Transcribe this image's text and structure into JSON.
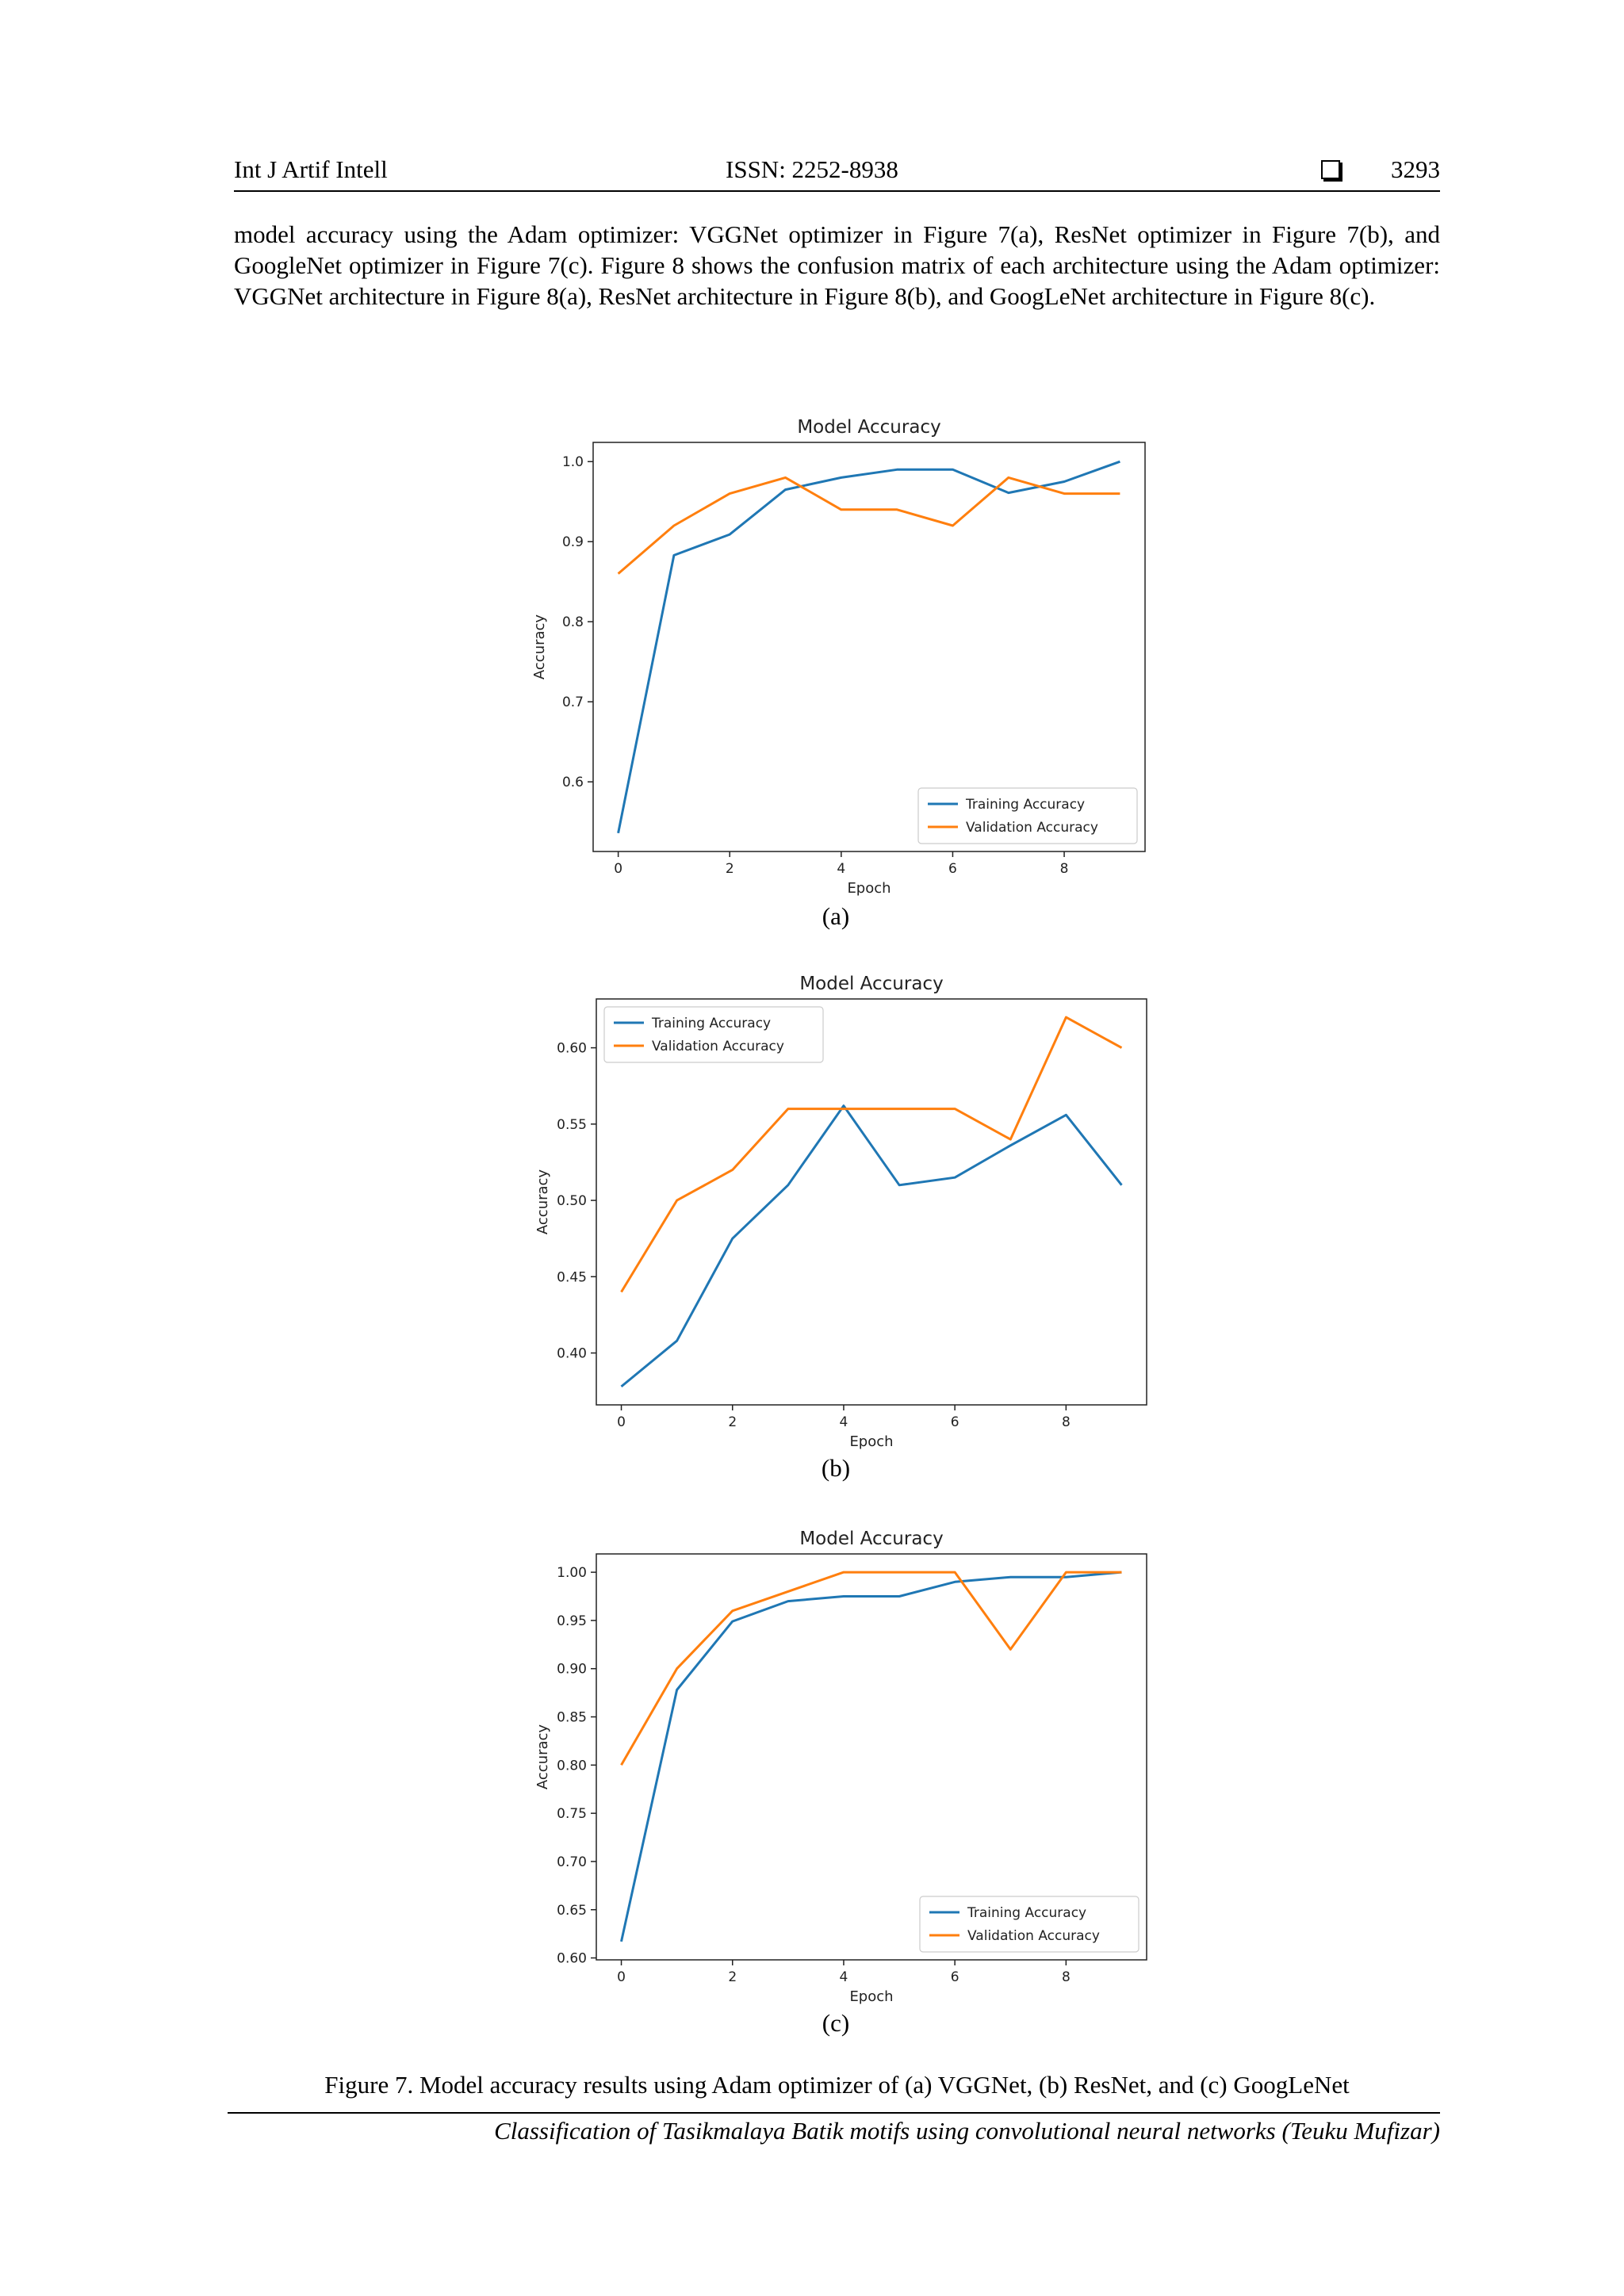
{
  "header": {
    "journal": "Int J Artif Intell",
    "issn": "ISSN: 2252-8938",
    "page_number": "3293"
  },
  "intro_text": "model accuracy using the Adam optimizer: VGGNet optimizer in Figure 7(a), ResNet optimizer in Figure 7(b), and GoogleNet optimizer in Figure 7(c). Figure 8 shows the confusion matrix of each architecture using the Adam optimizer: VGGNet architecture in Figure 8(a), ResNet architecture in Figure 8(b), and GoogLeNet architecture in Figure 8(c).",
  "subfigure_labels": [
    "(a)",
    "(b)",
    "(c)"
  ],
  "caption": "Figure 7. Model accuracy results using Adam optimizer of (a) VGGNet, (b) ResNet, and (c) GoogLeNet",
  "footer": "Classification of Tasikmalaya Batik motifs using convolutional neural networks (Teuku Mufizar)",
  "colors": {
    "training": "#1f77b4",
    "validation": "#ff7f0e"
  },
  "chart_data": [
    {
      "type": "line",
      "title": "Model Accuracy",
      "xlabel": "Epoch",
      "ylabel": "Accuracy",
      "x": [
        0,
        1,
        2,
        3,
        4,
        5,
        6,
        7,
        8,
        9
      ],
      "xticks": [
        0,
        2,
        4,
        6,
        8
      ],
      "xticklabels": [
        "0",
        "2",
        "4",
        "6",
        "8"
      ],
      "xlim": [
        -0.45,
        9.45
      ],
      "ylim": [
        0.513,
        1.024
      ],
      "yticks": [
        0.6,
        0.7,
        0.8,
        0.9,
        1.0
      ],
      "yticklabels": [
        "0.6",
        "0.7",
        "0.8",
        "0.9",
        "1.0"
      ],
      "legend": "lower-right",
      "grid": false,
      "series": [
        {
          "name": "Training Accuracy",
          "values": [
            0.536,
            0.883,
            0.909,
            0.965,
            0.98,
            0.99,
            0.99,
            0.961,
            0.975,
            1.0
          ]
        },
        {
          "name": "Validation Accuracy",
          "values": [
            0.86,
            0.92,
            0.96,
            0.98,
            0.94,
            0.94,
            0.92,
            0.98,
            0.96,
            0.96
          ]
        }
      ]
    },
    {
      "type": "line",
      "title": "Model Accuracy",
      "xlabel": "Epoch",
      "ylabel": "Accuracy",
      "x": [
        0,
        1,
        2,
        3,
        4,
        5,
        6,
        7,
        8,
        9
      ],
      "xticks": [
        0,
        2,
        4,
        6,
        8
      ],
      "xticklabels": [
        "0",
        "2",
        "4",
        "6",
        "8"
      ],
      "xlim": [
        -0.45,
        9.45
      ],
      "ylim": [
        0.366,
        0.632
      ],
      "yticks": [
        0.4,
        0.45,
        0.5,
        0.55,
        0.6
      ],
      "yticklabels": [
        "0.40",
        "0.45",
        "0.50",
        "0.55",
        "0.60"
      ],
      "legend": "upper-left",
      "grid": false,
      "series": [
        {
          "name": "Training Accuracy",
          "values": [
            0.378,
            0.408,
            0.475,
            0.51,
            0.562,
            0.51,
            0.515,
            0.536,
            0.556,
            0.51
          ]
        },
        {
          "name": "Validation Accuracy",
          "values": [
            0.44,
            0.5,
            0.52,
            0.56,
            0.56,
            0.56,
            0.56,
            0.54,
            0.62,
            0.6
          ]
        }
      ]
    },
    {
      "type": "line",
      "title": "Model Accuracy",
      "xlabel": "Epoch",
      "ylabel": "Accuracy",
      "x": [
        0,
        1,
        2,
        3,
        4,
        5,
        6,
        7,
        8,
        9
      ],
      "xticks": [
        0,
        2,
        4,
        6,
        8
      ],
      "xticklabels": [
        "0",
        "2",
        "4",
        "6",
        "8"
      ],
      "xlim": [
        -0.45,
        9.45
      ],
      "ylim": [
        0.598,
        1.019
      ],
      "yticks": [
        0.6,
        0.65,
        0.7,
        0.75,
        0.8,
        0.85,
        0.9,
        0.95,
        1.0
      ],
      "yticklabels": [
        "0.60",
        "0.65",
        "0.70",
        "0.75",
        "0.80",
        "0.85",
        "0.90",
        "0.95",
        "1.00"
      ],
      "legend": "lower-right",
      "grid": false,
      "series": [
        {
          "name": "Training Accuracy",
          "values": [
            0.617,
            0.878,
            0.949,
            0.97,
            0.975,
            0.975,
            0.99,
            0.995,
            0.995,
            1.0
          ]
        },
        {
          "name": "Validation Accuracy",
          "values": [
            0.8,
            0.9,
            0.96,
            0.98,
            1.0,
            1.0,
            1.0,
            0.92,
            1.0,
            1.0
          ]
        }
      ]
    }
  ]
}
